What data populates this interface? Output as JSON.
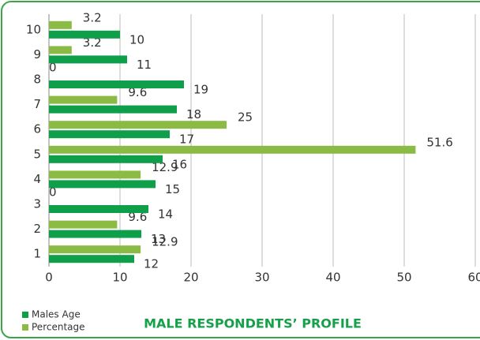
{
  "chart_data": {
    "type": "bar",
    "orientation": "horizontal",
    "title": "MALE RESPONDENTS’ PROFILE",
    "categories": [
      "1",
      "2",
      "3",
      "4",
      "5",
      "6",
      "7",
      "8",
      "9",
      "10"
    ],
    "series": [
      {
        "name": "Percentage",
        "color": "#8bbb45",
        "values": [
          12.9,
          9.6,
          0,
          12.9,
          51.6,
          25,
          9.6,
          0,
          3.2,
          3.2
        ]
      },
      {
        "name": "Males Age",
        "color": "#0f9f4a",
        "values": [
          12,
          13,
          14,
          15,
          16,
          17,
          18,
          19,
          11,
          10
        ]
      }
    ],
    "xlim": [
      0,
      60
    ],
    "xticks": [
      0,
      10,
      20,
      30,
      40,
      50,
      60
    ],
    "grid": true,
    "legend": "bottom-left"
  }
}
